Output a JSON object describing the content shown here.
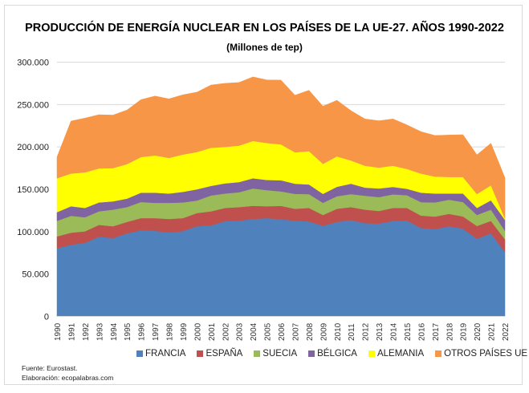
{
  "chart_data": {
    "type": "area",
    "stacked": true,
    "title": "PRODUCCIÓN DE ENERGÍA NUCLEAR EN LOS PAÍSES DE LA UE-27. AÑOS 1990-2022",
    "subtitle": "(Millones de tep)",
    "xlabel": "",
    "ylabel": "",
    "ylim": [
      0,
      300000
    ],
    "yticks": [
      0,
      50000,
      100000,
      150000,
      200000,
      250000,
      300000
    ],
    "ytick_labels": [
      "0",
      "50.000",
      "100.000",
      "150.000",
      "200.000",
      "250.000",
      "300.000"
    ],
    "grid": true,
    "legend_placement": "bottom",
    "x": [
      "1990",
      "1991",
      "1992",
      "1993",
      "1994",
      "1995",
      "1996",
      "1997",
      "1998",
      "1999",
      "2000",
      "2001",
      "2002",
      "2003",
      "2004",
      "2005",
      "2006",
      "2007",
      "2008",
      "2009",
      "2010",
      "2011",
      "2012",
      "2013",
      "2014",
      "2015",
      "2016",
      "2017",
      "2018",
      "2019",
      "2020",
      "2021",
      "2022"
    ],
    "series": [
      {
        "name": "FRANCIA",
        "color": "#4f81bd",
        "values": [
          80500,
          84600,
          86800,
          94000,
          92500,
          98000,
          101700,
          101000,
          99000,
          100700,
          106400,
          107400,
          112400,
          113000,
          115000,
          116000,
          114600,
          113000,
          112000,
          107000,
          111500,
          113700,
          110000,
          109600,
          112700,
          113000,
          104500,
          103000,
          106400,
          103600,
          91600,
          98000,
          76000
        ]
      },
      {
        "name": "ESPAÑA",
        "color": "#c0504d",
        "values": [
          13900,
          14200,
          13600,
          14000,
          13900,
          13500,
          14300,
          15000,
          16000,
          15300,
          15600,
          16600,
          15600,
          16000,
          15500,
          14000,
          15800,
          14000,
          16000,
          12700,
          15500,
          15300,
          16000,
          14800,
          15300,
          15000,
          14500,
          14800,
          14600,
          14400,
          15100,
          14700,
          15000
        ]
      },
      {
        "name": "SUECIA",
        "color": "#9bbb59",
        "values": [
          18300,
          19900,
          16600,
          16000,
          19600,
          17500,
          19000,
          18000,
          19000,
          18500,
          14700,
          18700,
          17000,
          17500,
          20500,
          19000,
          17100,
          17600,
          16300,
          14300,
          14800,
          15300,
          16400,
          16400,
          16000,
          15000,
          15800,
          16700,
          16700,
          17000,
          13000,
          13300,
          10000
        ]
      },
      {
        "name": "BÉLGICA",
        "color": "#8064a2",
        "values": [
          10300,
          11300,
          11000,
          10500,
          9800,
          10000,
          11000,
          12000,
          11000,
          12500,
          13300,
          11300,
          12000,
          12000,
          12000,
          12000,
          13200,
          12000,
          11400,
          10600,
          11200,
          12300,
          9600,
          10200,
          8800,
          7600,
          11200,
          10500,
          7300,
          10000,
          8300,
          11000,
          13000
        ]
      },
      {
        "name": "ALEMANIA",
        "color": "#ffff00",
        "values": [
          40000,
          38600,
          42000,
          40100,
          39200,
          40700,
          42000,
          44000,
          42000,
          44000,
          44000,
          45000,
          43000,
          43000,
          44000,
          43600,
          42300,
          37000,
          39300,
          35400,
          35800,
          27400,
          25800,
          24600,
          25000,
          23400,
          22600,
          20000,
          19500,
          19500,
          16300,
          17700,
          1600
        ]
      },
      {
        "name": "OTROS PAÍSES UE",
        "color": "#f79646",
        "values": [
          25000,
          61900,
          64000,
          63400,
          62500,
          63800,
          67800,
          70000,
          69700,
          70500,
          70600,
          74000,
          75000,
          74500,
          75600,
          74400,
          75800,
          67400,
          71800,
          68000,
          66200,
          58800,
          55200,
          55200,
          55200,
          52000,
          49400,
          48500,
          49500,
          49900,
          46400,
          49600,
          48000
        ]
      }
    ]
  },
  "footer": {
    "source": "Fuente: Eurostast.",
    "credit": "Elaboración: ecopalabras.com"
  }
}
